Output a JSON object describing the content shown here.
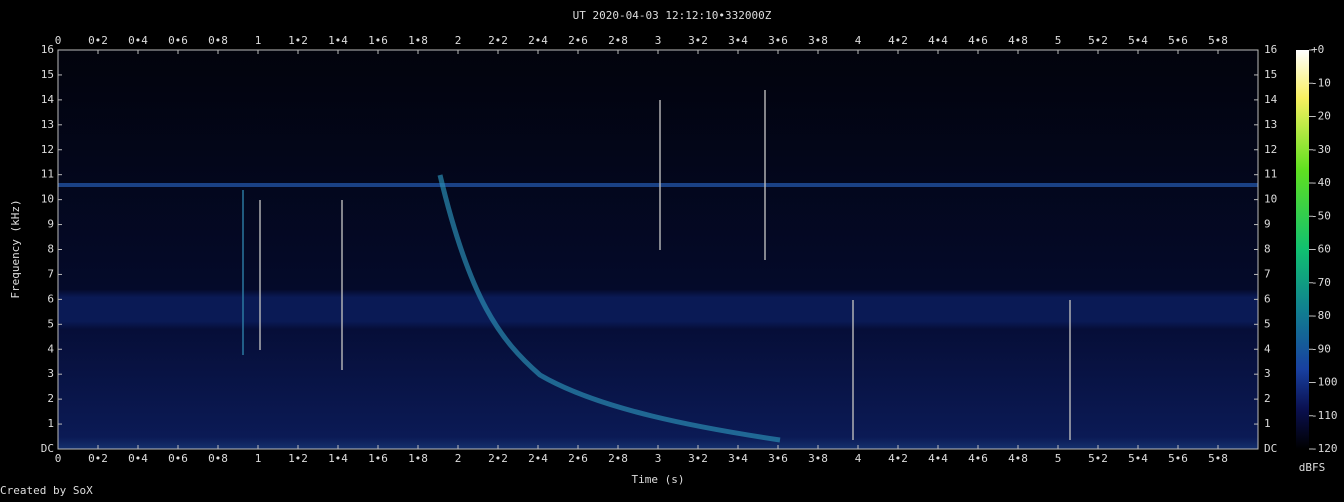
{
  "chart_data": {
    "type": "spectrogram",
    "title": "UT 2020-04-03 12:12:10•332000Z",
    "x_label": "Time (s)",
    "y_label": "Frequency (kHz)",
    "credit": "Created by SoX",
    "xlim": [
      0,
      6
    ],
    "xticks": [
      0,
      {
        "value": 0.2,
        "label": "0•2"
      },
      {
        "value": 0.4,
        "label": "0•4"
      },
      {
        "value": 0.6,
        "label": "0•6"
      },
      {
        "value": 0.8,
        "label": "0•8"
      },
      1,
      {
        "value": 1.2,
        "label": "1•2"
      },
      {
        "value": 1.4,
        "label": "1•4"
      },
      {
        "value": 1.6,
        "label": "1•6"
      },
      {
        "value": 1.8,
        "label": "1•8"
      },
      2,
      {
        "value": 2.2,
        "label": "2•2"
      },
      {
        "value": 2.4,
        "label": "2•4"
      },
      {
        "value": 2.6,
        "label": "2•6"
      },
      {
        "value": 2.8,
        "label": "2•8"
      },
      3,
      {
        "value": 3.2,
        "label": "3•2"
      },
      {
        "value": 3.4,
        "label": "3•4"
      },
      {
        "value": 3.6,
        "label": "3•6"
      },
      {
        "value": 3.8,
        "label": "3•8"
      },
      4,
      {
        "value": 4.2,
        "label": "4•2"
      },
      {
        "value": 4.4,
        "label": "4•4"
      },
      {
        "value": 4.6,
        "label": "4•6"
      },
      {
        "value": 4.8,
        "label": "4•8"
      },
      5,
      {
        "value": 5.2,
        "label": "5•2"
      },
      {
        "value": 5.4,
        "label": "5•4"
      },
      {
        "value": 5.6,
        "label": "5•6"
      },
      {
        "value": 5.8,
        "label": "5•8"
      }
    ],
    "ylim": [
      0,
      16
    ],
    "yticks": [
      {
        "value": 0,
        "label": "DC"
      },
      1,
      2,
      3,
      4,
      5,
      6,
      7,
      8,
      9,
      10,
      11,
      12,
      13,
      14,
      15,
      16
    ],
    "colorbar": {
      "label": "dBFS",
      "lim": [
        -120,
        0
      ],
      "ticks": [
        {
          "value": 0,
          "label": "+0"
        },
        -10,
        -20,
        -30,
        -40,
        -50,
        -60,
        -70,
        -80,
        -90,
        -100,
        -110,
        -120
      ]
    }
  }
}
